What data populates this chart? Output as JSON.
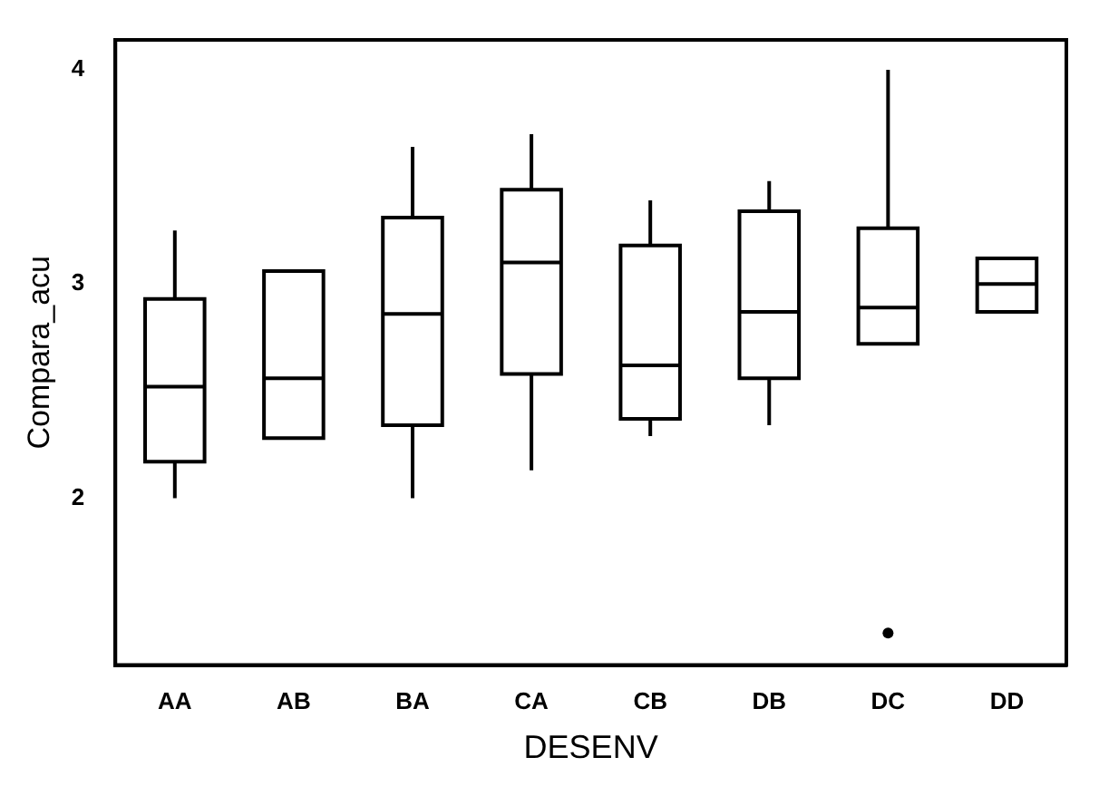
{
  "chart_data": {
    "type": "box",
    "xlabel": "DESENV",
    "ylabel": "Compara_acu",
    "categories": [
      "AA",
      "AB",
      "BA",
      "CA",
      "CB",
      "DB",
      "DC",
      "DD"
    ],
    "boxes": [
      {
        "low": 2.0,
        "q1": 2.17,
        "median": 2.52,
        "q3": 2.93,
        "high": 3.25
      },
      {
        "low": 2.28,
        "q1": 2.28,
        "median": 2.56,
        "q3": 3.06,
        "high": 3.06
      },
      {
        "low": 2.0,
        "q1": 2.34,
        "median": 2.86,
        "q3": 3.31,
        "high": 3.64
      },
      {
        "low": 2.13,
        "q1": 2.58,
        "median": 3.1,
        "q3": 3.44,
        "high": 3.7
      },
      {
        "low": 2.29,
        "q1": 2.37,
        "median": 2.62,
        "q3": 3.18,
        "high": 3.39
      },
      {
        "low": 2.34,
        "q1": 2.56,
        "median": 2.87,
        "q3": 3.34,
        "high": 3.48
      },
      {
        "low": 2.72,
        "q1": 2.72,
        "median": 2.89,
        "q3": 3.26,
        "high": 4.0,
        "outliers": [
          1.37
        ]
      },
      {
        "low": 2.87,
        "q1": 2.87,
        "median": 3.0,
        "q3": 3.12,
        "high": 3.12
      }
    ],
    "color": "#000000",
    "ylim": [
      1.22,
      4.14
    ],
    "yticks": [
      2,
      3,
      4
    ],
    "grid": false,
    "legend": false
  }
}
